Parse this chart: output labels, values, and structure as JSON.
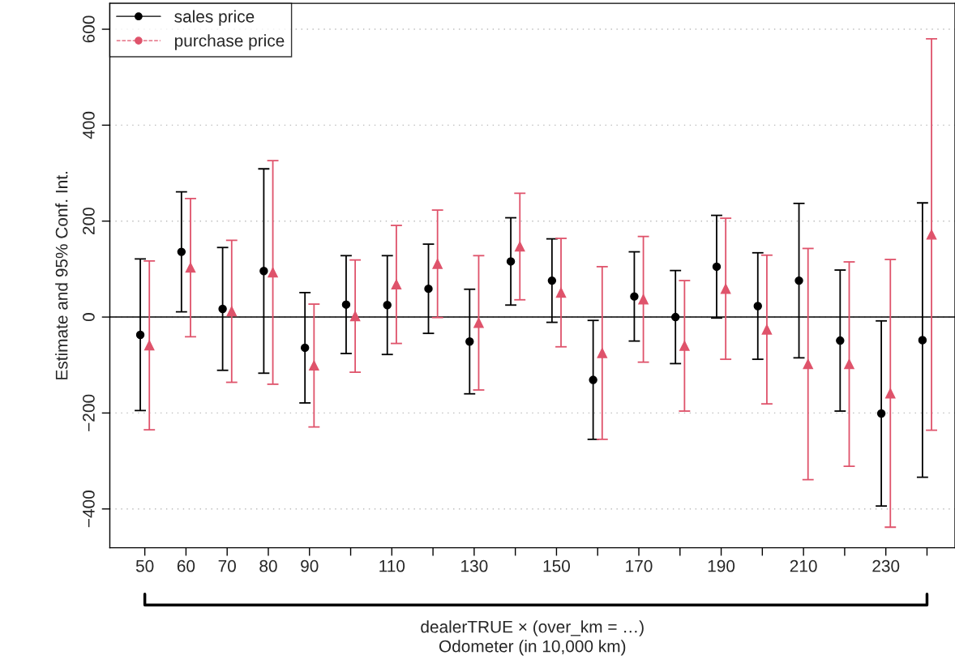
{
  "chart_data": {
    "type": "scatter",
    "xlabel": "dealerTRUE × (over_km = …)\nOdometer (in 10,000 km)",
    "ylabel": "Estimate and 95% Conf. Int.",
    "categories": [
      "50",
      "60",
      "70",
      "80",
      "90",
      null,
      "110",
      null,
      "130",
      null,
      "150",
      null,
      "170",
      null,
      "190",
      null,
      "210",
      null,
      "230",
      null
    ],
    "series": [
      {
        "name": "sales price",
        "color": "#000000",
        "marker": "circle",
        "line_style": "solid",
        "values": [
          -37,
          136,
          17,
          96,
          -64,
          26,
          25,
          59,
          -51,
          116,
          76,
          -131,
          43,
          0,
          105,
          23,
          76,
          -49,
          -201,
          -48
        ],
        "errors": [
          158,
          125,
          128,
          213,
          115,
          102,
          103,
          93,
          109,
          91,
          87,
          124,
          93,
          97,
          107,
          111,
          161,
          147,
          193,
          286
        ]
      },
      {
        "name": "purchase price",
        "color": "#df536b",
        "marker": "triangle",
        "line_style": "dashed",
        "values": [
          -59,
          103,
          12,
          93,
          -101,
          2,
          68,
          111,
          -12,
          147,
          51,
          -75,
          37,
          -60,
          59,
          -26,
          -98,
          -98,
          -159,
          172
        ],
        "errors": [
          176,
          144,
          148,
          233,
          128,
          117,
          123,
          112,
          140,
          111,
          113,
          180,
          131,
          136,
          147,
          155,
          241,
          213,
          279,
          408
        ]
      }
    ],
    "ylim": [
      -481,
      654
    ],
    "yticks": [
      -400,
      -200,
      0,
      200,
      400,
      600
    ],
    "ref_lines": [
      {
        "axis": "y",
        "value": 0,
        "color": "#000000"
      }
    ],
    "grid": "y",
    "legend": "top left"
  }
}
